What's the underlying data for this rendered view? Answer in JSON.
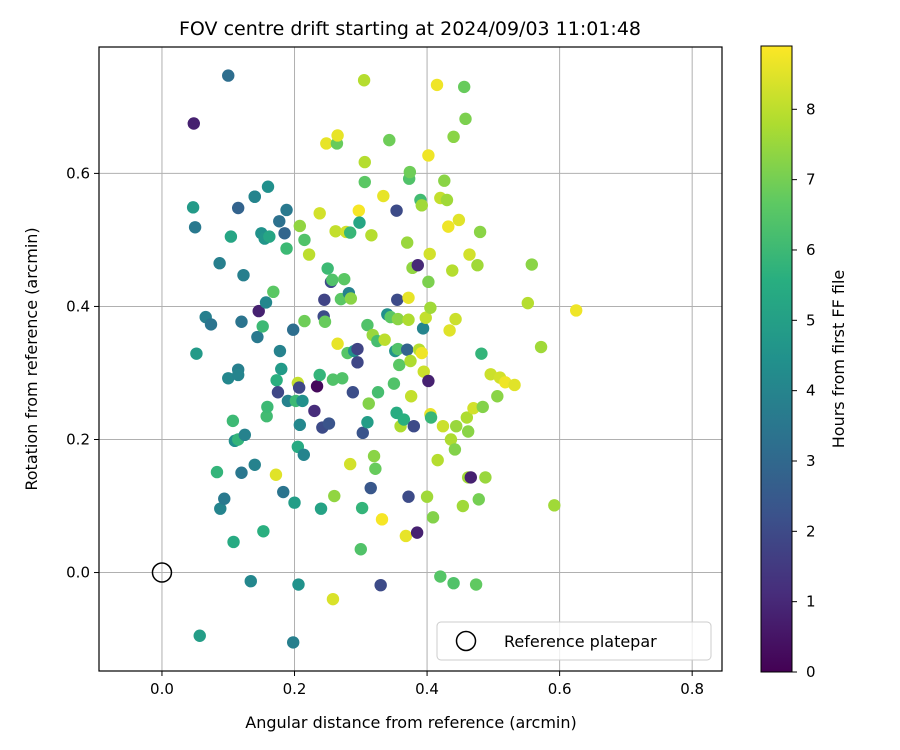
{
  "chart_data": {
    "type": "scatter",
    "title": "FOV centre drift starting at 2024/09/03 11:01:48",
    "xlabel": "Angular distance from reference (arcmin)",
    "ylabel": "Rotation from reference (arcmin)",
    "xlim": [
      -0.095,
      0.845
    ],
    "ylim": [
      -0.148,
      0.79
    ],
    "xticks": [
      0.0,
      0.2,
      0.4,
      0.6,
      0.8
    ],
    "xtick_labels": [
      "0.0",
      "0.2",
      "0.4",
      "0.6",
      "0.8"
    ],
    "yticks": [
      0.0,
      0.2,
      0.4,
      0.6
    ],
    "ytick_labels": [
      "0.0",
      "0.2",
      "0.4",
      "0.6"
    ],
    "grid": true,
    "colormap": "viridis",
    "colorbar": {
      "label": "Hours from first FF file",
      "range": [
        0,
        8.9
      ],
      "ticks": [
        0,
        1,
        2,
        3,
        4,
        5,
        6,
        7,
        8
      ],
      "tick_labels": [
        "0",
        "1",
        "2",
        "3",
        "4",
        "5",
        "6",
        "7",
        "8"
      ]
    },
    "legend": {
      "position": "lower-right",
      "entries": [
        "Reference platepar"
      ]
    },
    "reference_point": {
      "x": 0.0,
      "y": 0.0
    },
    "points": [
      {
        "x": 0.048,
        "y": 0.675,
        "h": 0.8
      },
      {
        "x": 0.1,
        "y": 0.747,
        "h": 3.2
      },
      {
        "x": 0.047,
        "y": 0.549,
        "h": 4.8
      },
      {
        "x": 0.05,
        "y": 0.519,
        "h": 3.6
      },
      {
        "x": 0.052,
        "y": 0.329,
        "h": 4.8
      },
      {
        "x": 0.057,
        "y": -0.095,
        "h": 4.9
      },
      {
        "x": 0.066,
        "y": 0.384,
        "h": 3.8
      },
      {
        "x": 0.074,
        "y": 0.373,
        "h": 3.4
      },
      {
        "x": 0.083,
        "y": 0.151,
        "h": 5.8
      },
      {
        "x": 0.087,
        "y": 0.465,
        "h": 3.8
      },
      {
        "x": 0.088,
        "y": 0.096,
        "h": 4.0
      },
      {
        "x": 0.094,
        "y": 0.111,
        "h": 3.6
      },
      {
        "x": 0.1,
        "y": 0.292,
        "h": 4.1
      },
      {
        "x": 0.104,
        "y": 0.505,
        "h": 5.2
      },
      {
        "x": 0.107,
        "y": 0.228,
        "h": 6.0
      },
      {
        "x": 0.108,
        "y": 0.046,
        "h": 5.4
      },
      {
        "x": 0.11,
        "y": 0.198,
        "h": 4.4
      },
      {
        "x": 0.115,
        "y": 0.2,
        "h": 5.8
      },
      {
        "x": 0.115,
        "y": 0.305,
        "h": 3.8
      },
      {
        "x": 0.115,
        "y": 0.297,
        "h": 4.0
      },
      {
        "x": 0.115,
        "y": 0.548,
        "h": 2.8
      },
      {
        "x": 0.12,
        "y": 0.377,
        "h": 3.4
      },
      {
        "x": 0.12,
        "y": 0.15,
        "h": 3.5
      },
      {
        "x": 0.123,
        "y": 0.447,
        "h": 3.8
      },
      {
        "x": 0.125,
        "y": 0.207,
        "h": 3.9
      },
      {
        "x": 0.134,
        "y": -0.013,
        "h": 4.1
      },
      {
        "x": 0.14,
        "y": 0.565,
        "h": 4.1
      },
      {
        "x": 0.14,
        "y": 0.565,
        "h": 4.0
      },
      {
        "x": 0.14,
        "y": 0.162,
        "h": 3.9
      },
      {
        "x": 0.144,
        "y": 0.354,
        "h": 3.6
      },
      {
        "x": 0.146,
        "y": 0.393,
        "h": 0.8
      },
      {
        "x": 0.15,
        "y": 0.51,
        "h": 4.5
      },
      {
        "x": 0.152,
        "y": 0.37,
        "h": 6.0
      },
      {
        "x": 0.153,
        "y": 0.062,
        "h": 5.6
      },
      {
        "x": 0.155,
        "y": 0.502,
        "h": 4.6
      },
      {
        "x": 0.157,
        "y": 0.406,
        "h": 4.1
      },
      {
        "x": 0.158,
        "y": 0.235,
        "h": 6.1
      },
      {
        "x": 0.159,
        "y": 0.249,
        "h": 6.0
      },
      {
        "x": 0.16,
        "y": 0.58,
        "h": 4.4
      },
      {
        "x": 0.162,
        "y": 0.505,
        "h": 5.2
      },
      {
        "x": 0.168,
        "y": 0.422,
        "h": 6.6
      },
      {
        "x": 0.172,
        "y": 0.147,
        "h": 8.5
      },
      {
        "x": 0.173,
        "y": 0.289,
        "h": 5.6
      },
      {
        "x": 0.175,
        "y": 0.271,
        "h": 1.9
      },
      {
        "x": 0.177,
        "y": 0.528,
        "h": 3.3
      },
      {
        "x": 0.178,
        "y": 0.333,
        "h": 3.9
      },
      {
        "x": 0.18,
        "y": 0.306,
        "h": 4.8
      },
      {
        "x": 0.183,
        "y": 0.121,
        "h": 3.4
      },
      {
        "x": 0.185,
        "y": 0.51,
        "h": 2.9
      },
      {
        "x": 0.188,
        "y": 0.545,
        "h": 3.6
      },
      {
        "x": 0.188,
        "y": 0.487,
        "h": 6.0
      },
      {
        "x": 0.19,
        "y": 0.258,
        "h": 3.9
      },
      {
        "x": 0.198,
        "y": 0.365,
        "h": 3.2
      },
      {
        "x": 0.198,
        "y": -0.105,
        "h": 3.8
      },
      {
        "x": 0.2,
        "y": 0.105,
        "h": 4.9
      },
      {
        "x": 0.202,
        "y": 0.258,
        "h": 6.0
      },
      {
        "x": 0.205,
        "y": 0.189,
        "h": 5.4
      },
      {
        "x": 0.205,
        "y": 0.285,
        "h": 8.1
      },
      {
        "x": 0.206,
        "y": -0.018,
        "h": 4.5
      },
      {
        "x": 0.207,
        "y": 0.278,
        "h": 1.9
      },
      {
        "x": 0.208,
        "y": 0.521,
        "h": 7.4
      },
      {
        "x": 0.208,
        "y": 0.222,
        "h": 4.1
      },
      {
        "x": 0.212,
        "y": 0.258,
        "h": 4.4
      },
      {
        "x": 0.214,
        "y": 0.177,
        "h": 4.0
      },
      {
        "x": 0.215,
        "y": 0.5,
        "h": 6.4
      },
      {
        "x": 0.215,
        "y": 0.378,
        "h": 6.9
      },
      {
        "x": 0.222,
        "y": 0.478,
        "h": 8.0
      },
      {
        "x": 0.23,
        "y": 0.243,
        "h": 1.1
      },
      {
        "x": 0.234,
        "y": 0.28,
        "h": 0.2
      },
      {
        "x": 0.238,
        "y": 0.297,
        "h": 5.8
      },
      {
        "x": 0.238,
        "y": 0.54,
        "h": 8.3
      },
      {
        "x": 0.24,
        "y": 0.096,
        "h": 5.1
      },
      {
        "x": 0.242,
        "y": 0.218,
        "h": 2.0
      },
      {
        "x": 0.244,
        "y": 0.385,
        "h": 2.0
      },
      {
        "x": 0.245,
        "y": 0.41,
        "h": 1.8
      },
      {
        "x": 0.246,
        "y": 0.377,
        "h": 6.8
      },
      {
        "x": 0.248,
        "y": 0.645,
        "h": 8.6
      },
      {
        "x": 0.25,
        "y": 0.457,
        "h": 6.0
      },
      {
        "x": 0.252,
        "y": 0.224,
        "h": 2.3
      },
      {
        "x": 0.255,
        "y": 0.437,
        "h": 2.0
      },
      {
        "x": 0.257,
        "y": 0.44,
        "h": 6.4
      },
      {
        "x": 0.258,
        "y": -0.04,
        "h": 8.4
      },
      {
        "x": 0.258,
        "y": 0.29,
        "h": 6.4
      },
      {
        "x": 0.26,
        "y": 0.115,
        "h": 7.4
      },
      {
        "x": 0.262,
        "y": 0.513,
        "h": 8.1
      },
      {
        "x": 0.264,
        "y": 0.645,
        "h": 6.8
      },
      {
        "x": 0.265,
        "y": 0.344,
        "h": 8.6
      },
      {
        "x": 0.265,
        "y": 0.657,
        "h": 8.6
      },
      {
        "x": 0.27,
        "y": 0.411,
        "h": 6.6
      },
      {
        "x": 0.272,
        "y": 0.292,
        "h": 6.4
      },
      {
        "x": 0.275,
        "y": 0.441,
        "h": 6.6
      },
      {
        "x": 0.278,
        "y": 0.512,
        "h": 8.3
      },
      {
        "x": 0.28,
        "y": 0.33,
        "h": 6.5
      },
      {
        "x": 0.282,
        "y": 0.42,
        "h": 3.9
      },
      {
        "x": 0.284,
        "y": 0.511,
        "h": 5.9
      },
      {
        "x": 0.284,
        "y": 0.163,
        "h": 8.3
      },
      {
        "x": 0.285,
        "y": 0.412,
        "h": 7.3
      },
      {
        "x": 0.288,
        "y": 0.271,
        "h": 2.1
      },
      {
        "x": 0.29,
        "y": 0.333,
        "h": 4.5
      },
      {
        "x": 0.295,
        "y": 0.316,
        "h": 1.9
      },
      {
        "x": 0.295,
        "y": 0.336,
        "h": 1.8
      },
      {
        "x": 0.297,
        "y": 0.544,
        "h": 8.8
      },
      {
        "x": 0.298,
        "y": 0.526,
        "h": 5.2
      },
      {
        "x": 0.3,
        "y": 0.035,
        "h": 6.4
      },
      {
        "x": 0.302,
        "y": 0.097,
        "h": 5.8
      },
      {
        "x": 0.303,
        "y": 0.21,
        "h": 2.3
      },
      {
        "x": 0.305,
        "y": 0.74,
        "h": 7.9
      },
      {
        "x": 0.306,
        "y": 0.587,
        "h": 6.6
      },
      {
        "x": 0.306,
        "y": 0.617,
        "h": 7.9
      },
      {
        "x": 0.31,
        "y": 0.372,
        "h": 6.4
      },
      {
        "x": 0.31,
        "y": 0.226,
        "h": 4.9
      },
      {
        "x": 0.312,
        "y": 0.254,
        "h": 7.2
      },
      {
        "x": 0.315,
        "y": 0.127,
        "h": 2.4
      },
      {
        "x": 0.316,
        "y": 0.507,
        "h": 7.9
      },
      {
        "x": 0.318,
        "y": 0.357,
        "h": 7.5
      },
      {
        "x": 0.32,
        "y": 0.175,
        "h": 7.3
      },
      {
        "x": 0.322,
        "y": 0.156,
        "h": 6.8
      },
      {
        "x": 0.325,
        "y": 0.348,
        "h": 6.2
      },
      {
        "x": 0.326,
        "y": 0.271,
        "h": 6.2
      },
      {
        "x": 0.33,
        "y": -0.019,
        "h": 2.0
      },
      {
        "x": 0.332,
        "y": 0.08,
        "h": 8.8
      },
      {
        "x": 0.334,
        "y": 0.566,
        "h": 8.6
      },
      {
        "x": 0.336,
        "y": 0.35,
        "h": 8.0
      },
      {
        "x": 0.34,
        "y": 0.388,
        "h": 4.4
      },
      {
        "x": 0.343,
        "y": 0.65,
        "h": 6.9
      },
      {
        "x": 0.345,
        "y": 0.384,
        "h": 6.6
      },
      {
        "x": 0.35,
        "y": 0.284,
        "h": 6.4
      },
      {
        "x": 0.352,
        "y": 0.333,
        "h": 4.6
      },
      {
        "x": 0.354,
        "y": 0.544,
        "h": 2.0
      },
      {
        "x": 0.354,
        "y": 0.24,
        "h": 5.5
      },
      {
        "x": 0.355,
        "y": 0.41,
        "h": 2.0
      },
      {
        "x": 0.356,
        "y": 0.381,
        "h": 7.3
      },
      {
        "x": 0.356,
        "y": 0.336,
        "h": 6.4
      },
      {
        "x": 0.358,
        "y": 0.312,
        "h": 6.6
      },
      {
        "x": 0.36,
        "y": 0.22,
        "h": 7.8
      },
      {
        "x": 0.365,
        "y": 0.23,
        "h": 5.6
      },
      {
        "x": 0.368,
        "y": 0.055,
        "h": 8.6
      },
      {
        "x": 0.37,
        "y": 0.335,
        "h": 2.8
      },
      {
        "x": 0.37,
        "y": 0.496,
        "h": 7.5
      },
      {
        "x": 0.372,
        "y": 0.114,
        "h": 2.0
      },
      {
        "x": 0.372,
        "y": 0.413,
        "h": 8.6
      },
      {
        "x": 0.372,
        "y": 0.38,
        "h": 7.8
      },
      {
        "x": 0.373,
        "y": 0.592,
        "h": 6.4
      },
      {
        "x": 0.374,
        "y": 0.602,
        "h": 6.9
      },
      {
        "x": 0.375,
        "y": 0.318,
        "h": 7.8
      },
      {
        "x": 0.376,
        "y": 0.265,
        "h": 8.1
      },
      {
        "x": 0.378,
        "y": 0.458,
        "h": 7.4
      },
      {
        "x": 0.38,
        "y": 0.22,
        "h": 2.0
      },
      {
        "x": 0.385,
        "y": 0.06,
        "h": 0.8
      },
      {
        "x": 0.386,
        "y": 0.462,
        "h": 1.0
      },
      {
        "x": 0.388,
        "y": 0.335,
        "h": 7.9
      },
      {
        "x": 0.39,
        "y": 0.56,
        "h": 6.1
      },
      {
        "x": 0.392,
        "y": 0.552,
        "h": 7.6
      },
      {
        "x": 0.392,
        "y": 0.33,
        "h": 8.7
      },
      {
        "x": 0.394,
        "y": 0.367,
        "h": 4.0
      },
      {
        "x": 0.395,
        "y": 0.302,
        "h": 8.2
      },
      {
        "x": 0.398,
        "y": 0.383,
        "h": 8.1
      },
      {
        "x": 0.4,
        "y": 0.114,
        "h": 7.6
      },
      {
        "x": 0.402,
        "y": 0.288,
        "h": 0.8
      },
      {
        "x": 0.402,
        "y": 0.437,
        "h": 7.1
      },
      {
        "x": 0.402,
        "y": 0.627,
        "h": 8.7
      },
      {
        "x": 0.404,
        "y": 0.479,
        "h": 8.3
      },
      {
        "x": 0.405,
        "y": 0.398,
        "h": 7.6
      },
      {
        "x": 0.405,
        "y": 0.238,
        "h": 8.6
      },
      {
        "x": 0.406,
        "y": 0.233,
        "h": 5.9
      },
      {
        "x": 0.409,
        "y": 0.083,
        "h": 7.2
      },
      {
        "x": 0.415,
        "y": 0.733,
        "h": 8.7
      },
      {
        "x": 0.416,
        "y": 0.169,
        "h": 7.9
      },
      {
        "x": 0.42,
        "y": -0.006,
        "h": 6.5
      },
      {
        "x": 0.42,
        "y": 0.563,
        "h": 8.1
      },
      {
        "x": 0.424,
        "y": 0.22,
        "h": 8.2
      },
      {
        "x": 0.426,
        "y": 0.589,
        "h": 7.3
      },
      {
        "x": 0.43,
        "y": 0.56,
        "h": 7.6
      },
      {
        "x": 0.432,
        "y": 0.52,
        "h": 8.7
      },
      {
        "x": 0.434,
        "y": 0.364,
        "h": 8.5
      },
      {
        "x": 0.436,
        "y": 0.2,
        "h": 7.8
      },
      {
        "x": 0.438,
        "y": 0.454,
        "h": 7.9
      },
      {
        "x": 0.44,
        "y": -0.016,
        "h": 6.4
      },
      {
        "x": 0.44,
        "y": 0.655,
        "h": 7.3
      },
      {
        "x": 0.442,
        "y": 0.185,
        "h": 7.2
      },
      {
        "x": 0.443,
        "y": 0.381,
        "h": 8.2
      },
      {
        "x": 0.444,
        "y": 0.22,
        "h": 7.5
      },
      {
        "x": 0.448,
        "y": 0.53,
        "h": 8.5
      },
      {
        "x": 0.454,
        "y": 0.1,
        "h": 7.6
      },
      {
        "x": 0.456,
        "y": 0.73,
        "h": 6.8
      },
      {
        "x": 0.458,
        "y": 0.682,
        "h": 7.1
      },
      {
        "x": 0.46,
        "y": 0.233,
        "h": 7.8
      },
      {
        "x": 0.462,
        "y": 0.212,
        "h": 7.3
      },
      {
        "x": 0.462,
        "y": 0.143,
        "h": 7.6
      },
      {
        "x": 0.464,
        "y": 0.478,
        "h": 8.3
      },
      {
        "x": 0.466,
        "y": 0.143,
        "h": 0.8
      },
      {
        "x": 0.47,
        "y": 0.247,
        "h": 8.3
      },
      {
        "x": 0.474,
        "y": -0.018,
        "h": 6.7
      },
      {
        "x": 0.476,
        "y": 0.462,
        "h": 7.6
      },
      {
        "x": 0.478,
        "y": 0.11,
        "h": 7.0
      },
      {
        "x": 0.48,
        "y": 0.512,
        "h": 7.3
      },
      {
        "x": 0.482,
        "y": 0.329,
        "h": 5.8
      },
      {
        "x": 0.484,
        "y": 0.249,
        "h": 7.2
      },
      {
        "x": 0.488,
        "y": 0.143,
        "h": 7.5
      },
      {
        "x": 0.496,
        "y": 0.298,
        "h": 8.2
      },
      {
        "x": 0.506,
        "y": 0.265,
        "h": 7.3
      },
      {
        "x": 0.51,
        "y": 0.293,
        "h": 8.3
      },
      {
        "x": 0.518,
        "y": 0.286,
        "h": 8.7
      },
      {
        "x": 0.532,
        "y": 0.282,
        "h": 8.5
      },
      {
        "x": 0.552,
        "y": 0.405,
        "h": 7.9
      },
      {
        "x": 0.558,
        "y": 0.463,
        "h": 7.3
      },
      {
        "x": 0.572,
        "y": 0.339,
        "h": 7.6
      },
      {
        "x": 0.592,
        "y": 0.101,
        "h": 7.6
      },
      {
        "x": 0.625,
        "y": 0.394,
        "h": 8.7
      }
    ]
  }
}
